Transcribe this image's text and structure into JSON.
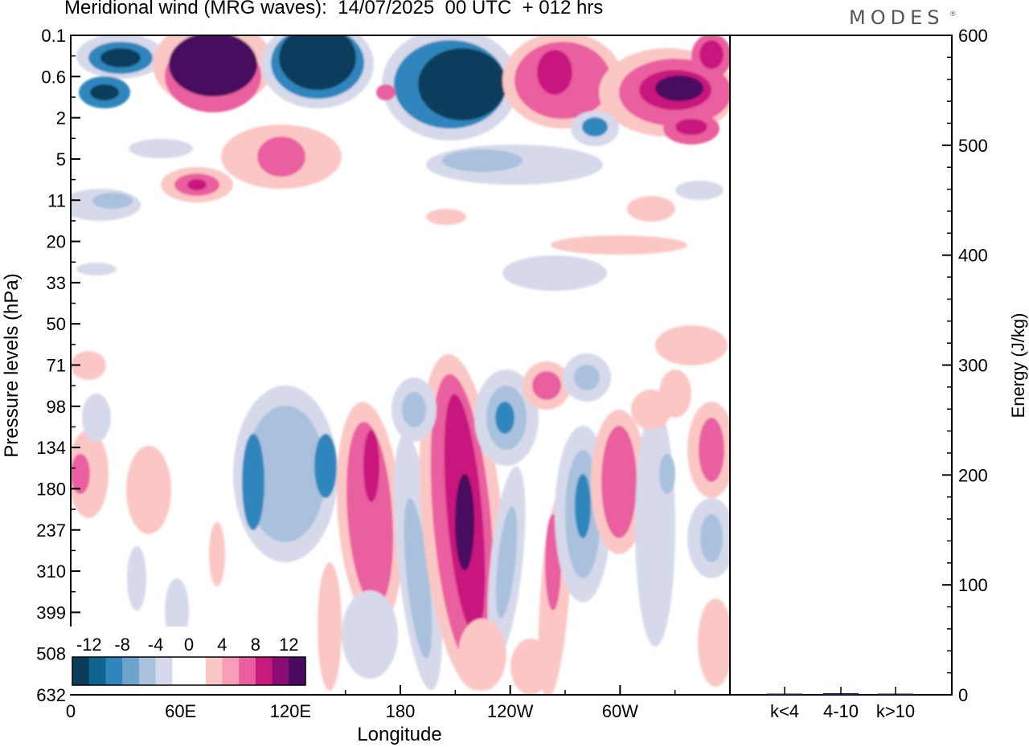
{
  "header": {
    "title": "Meridional wind (MRG waves):  14/07/2025  00 UTC  + 012 hrs",
    "brand": "MODES",
    "brand_mark": "®"
  },
  "chart_data": [
    {
      "type": "heatmap",
      "title": "Meridional wind (MRG waves):  14/07/2025  00 UTC  + 012 hrs",
      "xlabel": "Longitude",
      "ylabel": "Pressure levels (hPa)",
      "x_ticks": [
        "0",
        "60E",
        "120E",
        "180",
        "120W",
        "60W"
      ],
      "y_ticks": [
        "0.1",
        "0.6",
        "2",
        "5",
        "11",
        "20",
        "33",
        "50",
        "71",
        "98",
        "134",
        "180",
        "237",
        "310",
        "399",
        "508",
        "632"
      ],
      "legend": {
        "placement": "bottom-left",
        "labels": [
          "-12",
          "-8",
          "-4",
          "0",
          "4",
          "8",
          "12"
        ],
        "colors": [
          "#0b3d5b",
          "#0f6491",
          "#2f86bd",
          "#6fa3cc",
          "#a9c1dd",
          "#d6d9ea",
          "#ffffff",
          "#ffffff",
          "#fbc7c4",
          "#f79cb9",
          "#ea5f9f",
          "#c8197e",
          "#8a0d74",
          "#4a0a5e"
        ]
      },
      "colors": {
        "dark_blue": "#0b3d5b",
        "mid_blue": "#2f86bd",
        "light_blue": "#a9c1dd",
        "pale_blue": "#d6d9ea",
        "pale_pink": "#fbc7c4",
        "pink": "#ea5f9f",
        "magenta": "#c8197e",
        "dark_purple": "#4a0a5e"
      }
    },
    {
      "type": "bar",
      "categories": [
        "k<4",
        "4-10",
        "k>10"
      ],
      "values": [
        0.5,
        1.5,
        0.3
      ],
      "ylabel": "Energy (J/kg)",
      "ylim": [
        0,
        600
      ],
      "y_ticks": [
        "0",
        "100",
        "200",
        "300",
        "400",
        "500",
        "600"
      ],
      "bar_color": "#20205a"
    }
  ]
}
